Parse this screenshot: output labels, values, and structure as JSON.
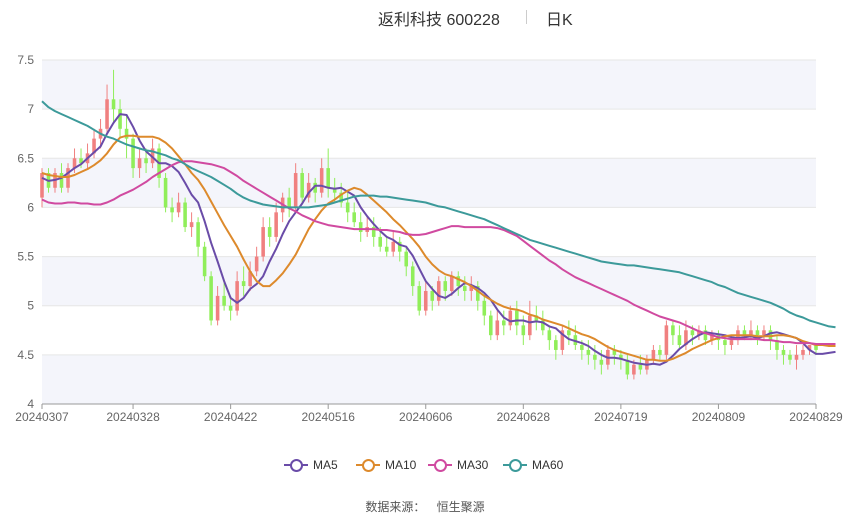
{
  "title": "返利科技 600228",
  "period_label": "日K",
  "source_label": "数据来源：",
  "source_value": "恒生聚源",
  "colors": {
    "up": "#f08080",
    "down": "#90ee5a",
    "ma5": "#6a4ca8",
    "ma10": "#dd8a2c",
    "ma30": "#d04aa0",
    "ma60": "#3c9a9a",
    "band": "#f4f5fb",
    "grid": "#e6e6e6"
  },
  "chart_data": {
    "type": "candlestick",
    "y_range": [
      4,
      7.5
    ],
    "y_ticks": [
      "7.5",
      "7",
      "6.5",
      "6",
      "5.5",
      "5",
      "4.5",
      "4"
    ],
    "x_tick_labels": [
      "20240307",
      "20240328",
      "20240422",
      "20240516",
      "20240606",
      "20240628",
      "20240719",
      "20240809",
      "20240829"
    ],
    "x_tick_index": [
      0,
      14,
      29,
      44,
      59,
      74,
      89,
      104,
      119
    ],
    "candles": [
      [
        6.1,
        6.35,
        6.0,
        6.4
      ],
      [
        6.35,
        6.2,
        6.15,
        6.4
      ],
      [
        6.2,
        6.35,
        6.15,
        6.4
      ],
      [
        6.35,
        6.2,
        6.15,
        6.45
      ],
      [
        6.2,
        6.4,
        6.15,
        6.45
      ],
      [
        6.4,
        6.5,
        6.35,
        6.6
      ],
      [
        6.5,
        6.45,
        6.4,
        6.6
      ],
      [
        6.45,
        6.55,
        6.4,
        6.65
      ],
      [
        6.55,
        6.7,
        6.5,
        6.8
      ],
      [
        6.7,
        6.8,
        6.6,
        6.9
      ],
      [
        6.8,
        7.1,
        6.75,
        7.25
      ],
      [
        7.1,
        7.0,
        6.85,
        7.4
      ],
      [
        7.0,
        6.8,
        6.7,
        7.1
      ],
      [
        6.8,
        6.7,
        6.5,
        6.95
      ],
      [
        6.7,
        6.4,
        6.3,
        6.75
      ],
      [
        6.4,
        6.5,
        6.3,
        6.6
      ],
      [
        6.5,
        6.45,
        6.35,
        6.6
      ],
      [
        6.45,
        6.6,
        6.4,
        6.7
      ],
      [
        6.6,
        6.3,
        6.2,
        6.65
      ],
      [
        6.3,
        6.0,
        5.95,
        6.35
      ],
      [
        6.0,
        5.95,
        5.85,
        6.1
      ],
      [
        5.95,
        6.05,
        5.9,
        6.15
      ],
      [
        6.05,
        5.8,
        5.75,
        6.1
      ],
      [
        5.8,
        5.85,
        5.7,
        5.95
      ],
      [
        5.85,
        5.6,
        5.5,
        5.9
      ],
      [
        5.6,
        5.3,
        5.25,
        5.65
      ],
      [
        5.3,
        4.85,
        4.8,
        5.35
      ],
      [
        4.85,
        5.1,
        4.8,
        5.2
      ],
      [
        5.1,
        5.0,
        4.95,
        5.25
      ],
      [
        5.0,
        4.95,
        4.85,
        5.1
      ],
      [
        4.95,
        5.25,
        4.9,
        5.35
      ],
      [
        5.25,
        5.2,
        5.1,
        5.4
      ],
      [
        5.2,
        5.35,
        5.15,
        5.45
      ],
      [
        5.35,
        5.5,
        5.3,
        5.6
      ],
      [
        5.5,
        5.8,
        5.45,
        5.9
      ],
      [
        5.8,
        5.7,
        5.6,
        5.9
      ],
      [
        5.7,
        5.95,
        5.65,
        6.05
      ],
      [
        5.95,
        6.1,
        5.85,
        6.15
      ],
      [
        6.1,
        6.0,
        5.9,
        6.2
      ],
      [
        6.0,
        6.35,
        5.95,
        6.45
      ],
      [
        6.35,
        6.1,
        6.05,
        6.4
      ],
      [
        6.1,
        6.25,
        6.05,
        6.35
      ],
      [
        6.25,
        6.15,
        6.05,
        6.3
      ],
      [
        6.15,
        6.4,
        6.1,
        6.5
      ],
      [
        6.4,
        6.2,
        6.1,
        6.6
      ],
      [
        6.2,
        6.15,
        6.05,
        6.3
      ],
      [
        6.15,
        6.05,
        6.0,
        6.25
      ],
      [
        6.05,
        5.95,
        5.85,
        6.15
      ],
      [
        5.95,
        5.85,
        5.8,
        6.05
      ],
      [
        5.85,
        5.75,
        5.65,
        5.95
      ],
      [
        5.75,
        5.8,
        5.7,
        5.9
      ],
      [
        5.8,
        5.7,
        5.6,
        5.9
      ],
      [
        5.7,
        5.6,
        5.55,
        5.8
      ],
      [
        5.6,
        5.55,
        5.5,
        5.7
      ],
      [
        5.55,
        5.65,
        5.5,
        5.75
      ],
      [
        5.65,
        5.55,
        5.45,
        5.7
      ],
      [
        5.55,
        5.4,
        5.3,
        5.6
      ],
      [
        5.4,
        5.2,
        5.1,
        5.45
      ],
      [
        5.2,
        4.95,
        4.9,
        5.25
      ],
      [
        4.95,
        5.15,
        4.9,
        5.25
      ],
      [
        5.15,
        5.05,
        4.95,
        5.2
      ],
      [
        5.05,
        5.25,
        5.0,
        5.3
      ],
      [
        5.25,
        5.15,
        5.05,
        5.3
      ],
      [
        5.15,
        5.3,
        5.1,
        5.35
      ],
      [
        5.3,
        5.2,
        5.1,
        5.35
      ],
      [
        5.2,
        5.15,
        5.05,
        5.3
      ],
      [
        5.15,
        5.2,
        5.05,
        5.3
      ],
      [
        5.2,
        5.05,
        4.95,
        5.25
      ],
      [
        5.05,
        4.9,
        4.8,
        5.1
      ],
      [
        4.9,
        4.7,
        4.65,
        4.95
      ],
      [
        4.7,
        4.85,
        4.65,
        4.95
      ],
      [
        4.85,
        4.8,
        4.7,
        4.95
      ],
      [
        4.8,
        4.95,
        4.75,
        5.0
      ],
      [
        4.95,
        4.8,
        4.7,
        5.05
      ],
      [
        4.8,
        4.7,
        4.6,
        4.9
      ],
      [
        4.7,
        4.9,
        4.65,
        5.05
      ],
      [
        4.9,
        4.85,
        4.75,
        5.0
      ],
      [
        4.85,
        4.75,
        4.7,
        4.95
      ],
      [
        4.75,
        4.65,
        4.55,
        4.8
      ],
      [
        4.65,
        4.55,
        4.45,
        4.7
      ],
      [
        4.55,
        4.75,
        4.5,
        4.8
      ],
      [
        4.75,
        4.7,
        4.6,
        4.85
      ],
      [
        4.7,
        4.6,
        4.55,
        4.8
      ],
      [
        4.6,
        4.55,
        4.45,
        4.65
      ],
      [
        4.55,
        4.5,
        4.4,
        4.65
      ],
      [
        4.5,
        4.45,
        4.35,
        4.6
      ],
      [
        4.45,
        4.4,
        4.3,
        4.55
      ],
      [
        4.4,
        4.55,
        4.35,
        4.6
      ],
      [
        4.55,
        4.5,
        4.4,
        4.6
      ],
      [
        4.5,
        4.45,
        4.35,
        4.55
      ],
      [
        4.45,
        4.3,
        4.25,
        4.5
      ],
      [
        4.3,
        4.4,
        4.25,
        4.45
      ],
      [
        4.4,
        4.35,
        4.3,
        4.5
      ],
      [
        4.35,
        4.45,
        4.3,
        4.5
      ],
      [
        4.45,
        4.55,
        4.4,
        4.6
      ],
      [
        4.55,
        4.5,
        4.45,
        4.6
      ],
      [
        4.5,
        4.8,
        4.45,
        4.85
      ],
      [
        4.8,
        4.7,
        4.6,
        4.85
      ],
      [
        4.7,
        4.6,
        4.55,
        4.8
      ],
      [
        4.6,
        4.75,
        4.55,
        4.85
      ],
      [
        4.75,
        4.7,
        4.6,
        4.8
      ],
      [
        4.7,
        4.75,
        4.65,
        4.8
      ],
      [
        4.75,
        4.65,
        4.6,
        4.8
      ],
      [
        4.65,
        4.7,
        4.6,
        4.75
      ],
      [
        4.7,
        4.65,
        4.55,
        4.75
      ],
      [
        4.65,
        4.6,
        4.5,
        4.7
      ],
      [
        4.6,
        4.65,
        4.55,
        4.7
      ],
      [
        4.65,
        4.75,
        4.6,
        4.8
      ],
      [
        4.75,
        4.7,
        4.65,
        4.8
      ],
      [
        4.7,
        4.75,
        4.65,
        4.85
      ],
      [
        4.75,
        4.7,
        4.6,
        4.8
      ],
      [
        4.7,
        4.75,
        4.65,
        4.8
      ],
      [
        4.75,
        4.65,
        4.55,
        4.8
      ],
      [
        4.65,
        4.55,
        4.45,
        4.7
      ],
      [
        4.55,
        4.5,
        4.4,
        4.6
      ],
      [
        4.5,
        4.45,
        4.4,
        4.55
      ],
      [
        4.45,
        4.5,
        4.35,
        4.6
      ],
      [
        4.5,
        4.55,
        4.45,
        4.6
      ],
      [
        4.55,
        4.6,
        4.5,
        4.6
      ],
      [
        4.6,
        4.55,
        4.5,
        4.6
      ]
    ],
    "series": [
      {
        "name": "MA5",
        "color": "#6a4ca8",
        "values": [
          6.3,
          6.27,
          6.28,
          6.3,
          6.35,
          6.4,
          6.44,
          6.5,
          6.56,
          6.62,
          6.75,
          6.86,
          6.95,
          6.94,
          6.82,
          6.68,
          6.57,
          6.51,
          6.45,
          6.45,
          6.42,
          6.36,
          6.25,
          6.13,
          6.05,
          5.86,
          5.64,
          5.45,
          5.25,
          5.08,
          5.03,
          5.08,
          5.17,
          5.22,
          5.3,
          5.45,
          5.58,
          5.73,
          5.86,
          5.95,
          6.04,
          6.15,
          6.22,
          6.22,
          6.2,
          6.19,
          6.2,
          6.16,
          6.12,
          6.0,
          5.91,
          5.83,
          5.76,
          5.7,
          5.67,
          5.62,
          5.6,
          5.51,
          5.38,
          5.25,
          5.17,
          5.1,
          5.08,
          5.12,
          5.18,
          5.23,
          5.21,
          5.18,
          5.13,
          5.06,
          4.96,
          4.88,
          4.84,
          4.85,
          4.85,
          4.83,
          4.84,
          4.83,
          4.79,
          4.77,
          4.71,
          4.66,
          4.64,
          4.62,
          4.59,
          4.54,
          4.5,
          4.47,
          4.47,
          4.46,
          4.44,
          4.42,
          4.41,
          4.4,
          4.41,
          4.4,
          4.43,
          4.49,
          4.56,
          4.61,
          4.66,
          4.7,
          4.73,
          4.72,
          4.71,
          4.7,
          4.68,
          4.67,
          4.68,
          4.69,
          4.67,
          4.69,
          4.72,
          4.73,
          4.71,
          4.69,
          4.67,
          4.62,
          4.55,
          4.51,
          4.51,
          4.52,
          4.53
        ]
      },
      {
        "name": "MA10",
        "color": "#dd8a2c",
        "values": [
          6.35,
          6.33,
          6.32,
          6.31,
          6.31,
          6.33,
          6.36,
          6.39,
          6.43,
          6.48,
          6.55,
          6.64,
          6.71,
          6.73,
          6.73,
          6.72,
          6.72,
          6.72,
          6.7,
          6.66,
          6.6,
          6.52,
          6.44,
          6.35,
          6.28,
          6.18,
          6.06,
          5.94,
          5.82,
          5.71,
          5.6,
          5.47,
          5.35,
          5.25,
          5.2,
          5.2,
          5.26,
          5.33,
          5.42,
          5.52,
          5.65,
          5.78,
          5.88,
          5.97,
          6.04,
          6.08,
          6.13,
          6.17,
          6.2,
          6.18,
          6.13,
          6.07,
          6.01,
          5.95,
          5.88,
          5.82,
          5.75,
          5.68,
          5.6,
          5.5,
          5.42,
          5.36,
          5.32,
          5.3,
          5.27,
          5.24,
          5.2,
          5.15,
          5.1,
          5.06,
          5.02,
          4.99,
          4.97,
          4.96,
          4.94,
          4.91,
          4.89,
          4.86,
          4.84,
          4.82,
          4.8,
          4.77,
          4.74,
          4.71,
          4.69,
          4.66,
          4.62,
          4.58,
          4.55,
          4.53,
          4.51,
          4.49,
          4.47,
          4.45,
          4.45,
          4.44,
          4.44,
          4.46,
          4.49,
          4.52,
          4.56,
          4.59,
          4.62,
          4.65,
          4.67,
          4.69,
          4.7,
          4.7,
          4.7,
          4.7,
          4.69,
          4.69,
          4.69,
          4.7,
          4.7,
          4.69,
          4.67,
          4.64,
          4.62,
          4.6,
          4.6,
          4.59,
          4.59
        ]
      },
      {
        "name": "MA30",
        "color": "#d04aa0",
        "values": [
          6.08,
          6.05,
          6.04,
          6.04,
          6.05,
          6.05,
          6.04,
          6.04,
          6.03,
          6.03,
          6.05,
          6.08,
          6.12,
          6.15,
          6.18,
          6.22,
          6.26,
          6.31,
          6.35,
          6.39,
          6.43,
          6.46,
          6.47,
          6.47,
          6.46,
          6.45,
          6.44,
          6.42,
          6.4,
          6.36,
          6.32,
          6.27,
          6.23,
          6.19,
          6.15,
          6.11,
          6.07,
          6.03,
          5.99,
          5.96,
          5.92,
          5.89,
          5.86,
          5.84,
          5.82,
          5.81,
          5.8,
          5.79,
          5.78,
          5.78,
          5.78,
          5.78,
          5.77,
          5.77,
          5.76,
          5.75,
          5.73,
          5.72,
          5.72,
          5.73,
          5.75,
          5.77,
          5.79,
          5.81,
          5.81,
          5.8,
          5.8,
          5.8,
          5.8,
          5.8,
          5.79,
          5.77,
          5.74,
          5.71,
          5.66,
          5.61,
          5.56,
          5.51,
          5.46,
          5.42,
          5.37,
          5.33,
          5.29,
          5.26,
          5.23,
          5.2,
          5.17,
          5.14,
          5.11,
          5.08,
          5.05,
          5.01,
          4.98,
          4.95,
          4.92,
          4.89,
          4.87,
          4.85,
          4.83,
          4.8,
          4.77,
          4.74,
          4.72,
          4.7,
          4.68,
          4.67,
          4.66,
          4.66,
          4.66,
          4.66,
          4.66,
          4.65,
          4.65,
          4.64,
          4.63,
          4.63,
          4.62,
          4.62,
          4.62,
          4.61,
          4.61,
          4.61,
          4.61
        ]
      },
      {
        "name": "MA60",
        "color": "#3c9a9a",
        "values": [
          7.08,
          7.02,
          6.98,
          6.95,
          6.92,
          6.89,
          6.86,
          6.83,
          6.79,
          6.75,
          6.72,
          6.7,
          6.67,
          6.64,
          6.62,
          6.6,
          6.58,
          6.57,
          6.55,
          6.53,
          6.5,
          6.48,
          6.44,
          6.4,
          6.37,
          6.34,
          6.31,
          6.27,
          6.23,
          6.19,
          6.14,
          6.1,
          6.07,
          6.05,
          6.03,
          6.02,
          6.01,
          6.0,
          6.0,
          6.0,
          6.0,
          6.0,
          6.01,
          6.02,
          6.03,
          6.05,
          6.07,
          6.09,
          6.11,
          6.12,
          6.12,
          6.12,
          6.11,
          6.11,
          6.1,
          6.09,
          6.08,
          6.07,
          6.06,
          6.05,
          6.03,
          6.01,
          6.0,
          5.98,
          5.96,
          5.94,
          5.92,
          5.9,
          5.88,
          5.85,
          5.82,
          5.79,
          5.76,
          5.73,
          5.7,
          5.67,
          5.65,
          5.63,
          5.61,
          5.59,
          5.57,
          5.55,
          5.53,
          5.51,
          5.49,
          5.47,
          5.45,
          5.44,
          5.43,
          5.42,
          5.41,
          5.41,
          5.4,
          5.39,
          5.38,
          5.37,
          5.36,
          5.35,
          5.34,
          5.32,
          5.3,
          5.28,
          5.26,
          5.24,
          5.21,
          5.19,
          5.16,
          5.13,
          5.11,
          5.09,
          5.07,
          5.05,
          5.03,
          5.0,
          4.97,
          4.93,
          4.9,
          4.88,
          4.85,
          4.83,
          4.81,
          4.79,
          4.78
        ]
      }
    ]
  }
}
